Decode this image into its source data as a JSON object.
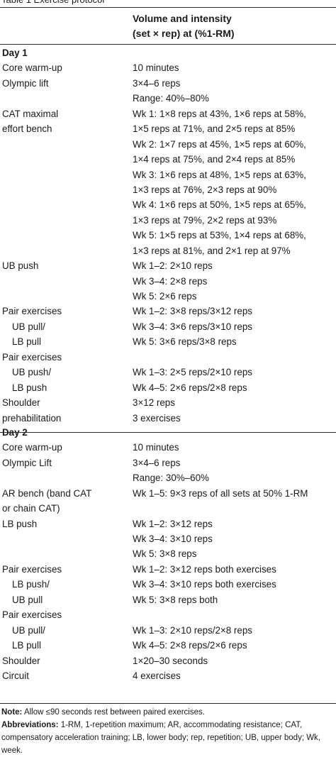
{
  "table": {
    "caption": "Table 1 Exercise protocol",
    "header_line1": "Volume and intensity",
    "header_line2": "(set × rep) at (%1-RM)",
    "rows": [
      {
        "c1": "Day 1",
        "c2": "",
        "bold": true
      },
      {
        "c1": "Core warm-up",
        "c2": "10 minutes"
      },
      {
        "c1": "Olympic lift",
        "c2": "3×4–6 reps"
      },
      {
        "c1": "",
        "c2": "Range: 40%–80%"
      },
      {
        "c1": "CAT maximal",
        "c2": "Wk 1: 1×8 reps at 43%, 1×6 reps at 58%,"
      },
      {
        "c1": "effort bench",
        "c2": "1×5 reps at 71%, and 2×5 reps at 85%"
      },
      {
        "c1": "",
        "c2": "Wk 2: 1×7 reps at 45%, 1×5 reps at 60%,"
      },
      {
        "c1": "",
        "c2": "1×4 reps at 75%, and 2×4 reps at 85%"
      },
      {
        "c1": "",
        "c2": "Wk 3: 1×6 reps at 48%, 1×5 reps at 63%,"
      },
      {
        "c1": "",
        "c2": "1×3 reps at 76%, 2×3 reps at 90%"
      },
      {
        "c1": "",
        "c2": "Wk 4: 1×6 reps at 50%, 1×5 reps at 65%,"
      },
      {
        "c1": "",
        "c2": "1×3 reps at 79%, 2×2 reps at 93%"
      },
      {
        "c1": "",
        "c2": "Wk 5: 1×5 reps at 53%, 1×4 reps at 68%,"
      },
      {
        "c1": "",
        "c2": "1×3 reps at 81%, and 2×1 rep at 97%"
      },
      {
        "c1": "UB push",
        "c2": "Wk 1–2: 2×10 reps"
      },
      {
        "c1": "",
        "c2": "Wk 3–4: 2×8 reps"
      },
      {
        "c1": "",
        "c2": "Wk 5: 2×6 reps"
      },
      {
        "c1": "Pair exercises",
        "c2": "Wk 1–2: 3×8 reps/3×12 reps"
      },
      {
        "c1": "UB pull/",
        "c2": "Wk 3–4: 3×6 reps/3×10 reps",
        "indent": true
      },
      {
        "c1": "LB pull",
        "c2": "Wk 5: 3×6 reps/3×8 reps",
        "indent": true
      },
      {
        "c1": "Pair exercises",
        "c2": ""
      },
      {
        "c1": "UB push/",
        "c2": "Wk 1–3: 2×5 reps/2×10 reps",
        "indent": true
      },
      {
        "c1": "LB push",
        "c2": "Wk 4–5: 2×6 reps/2×8 reps",
        "indent": true
      },
      {
        "c1": "Shoulder",
        "c2": "3×12 reps"
      },
      {
        "c1": "prehabilitation",
        "c2": "3 exercises"
      },
      {
        "c1": "Day 2",
        "c2": "",
        "bold": true
      },
      {
        "c1": "Core warm-up",
        "c2": "10 minutes"
      },
      {
        "c1": "Olympic Lift",
        "c2": "3×4–6 reps"
      },
      {
        "c1": "",
        "c2": "Range: 30%–60%"
      },
      {
        "c1": "AR bench (band CAT",
        "c2": "Wk 1–5: 9×3 reps of all sets at 50% 1-RM"
      },
      {
        "c1": "or chain CAT)",
        "c2": ""
      },
      {
        "c1": "LB push",
        "c2": "Wk 1–2: 3×12 reps"
      },
      {
        "c1": "",
        "c2": "Wk 3–4: 3×10 reps"
      },
      {
        "c1": "",
        "c2": "Wk 5: 3×8 reps"
      },
      {
        "c1": "Pair exercises",
        "c2": "Wk 1–2: 3×12 reps both exercises"
      },
      {
        "c1": "LB push/",
        "c2": "Wk 3–4: 3×10 reps both exercises",
        "indent": true
      },
      {
        "c1": "UB pull",
        "c2": "Wk 5: 3×8 reps both",
        "indent": true
      },
      {
        "c1": "Pair exercises",
        "c2": ""
      },
      {
        "c1": "UB pull/",
        "c2": "Wk 1–3: 2×10 reps/2×8 reps",
        "indent": true
      },
      {
        "c1": "LB pull",
        "c2": "Wk 4–5: 2×8 reps/2×6 reps",
        "indent": true
      },
      {
        "c1": "Shoulder",
        "c2": "1×20–30 seconds"
      },
      {
        "c1": "Circuit",
        "c2": "4 exercises"
      }
    ]
  },
  "notes": {
    "note_label": "Note:",
    "note_text": " Allow ≤90 seconds rest between paired exercises.",
    "abbr_label": "Abbreviations:",
    "abbr_text": " 1-RM, 1-repetition maximum; AR, accommodating resistance; CAT, compensatory acceleration training; LB, lower body; rep, repetition; UB, upper body; Wk, week."
  }
}
